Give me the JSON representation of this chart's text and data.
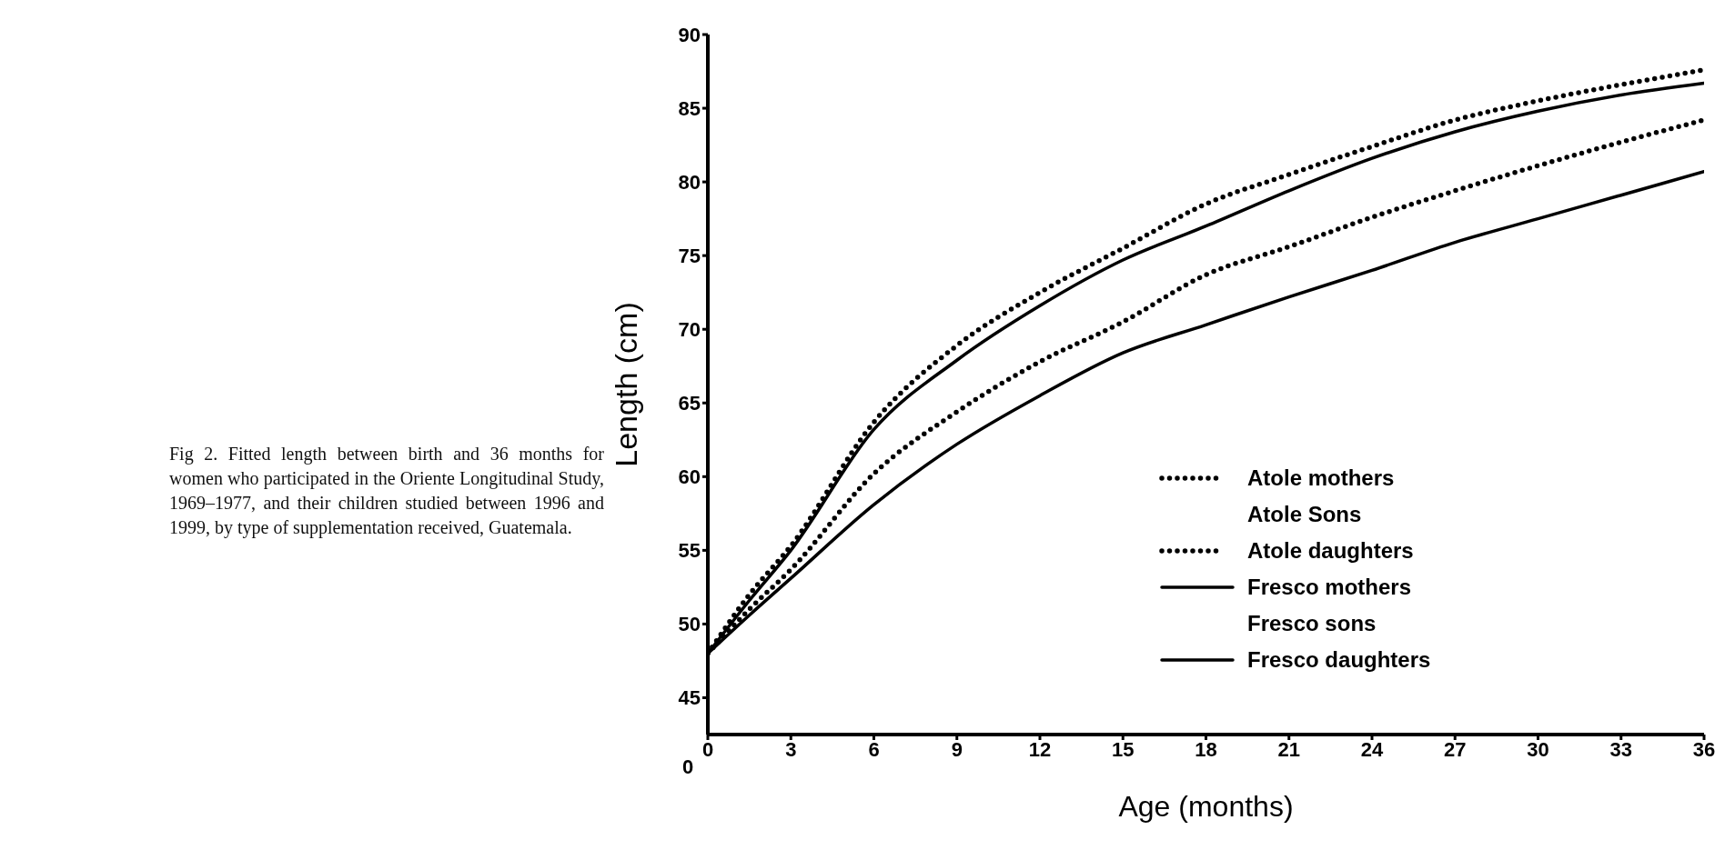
{
  "chart_data": {
    "type": "line",
    "title": "Fig 2. Fitted length between birth and 36 months for women who participated in the Oriente Longitudinal Study, 1969–1977, and their children studied between 1996 and 1999, by type of supplementation received, Guatemala.",
    "xlabel": "Age (months)",
    "ylabel": "Length (cm)",
    "x": [
      0,
      1.5,
      3,
      6,
      9,
      12,
      15,
      18,
      21,
      24,
      27,
      30,
      33,
      36
    ],
    "series": [
      {
        "name": "Atole mothers",
        "color": "#000000",
        "line_style": "dotted",
        "values": [
          48,
          52,
          55.3,
          63.7,
          68.9,
          72.5,
          75.5,
          78.5,
          80.5,
          82.4,
          84.2,
          85.5,
          86.6,
          87.6
        ]
      },
      {
        "name": "Atole Sons",
        "values": [
          null,
          null,
          null,
          null,
          null,
          null,
          null,
          null,
          null,
          null,
          null,
          null,
          null,
          null
        ]
      },
      {
        "name": "Atole daughters",
        "color": "#000000",
        "line_style": "dotted",
        "values": [
          48,
          51,
          53.7,
          60.2,
          64.4,
          67.8,
          70.5,
          73.7,
          75.6,
          77.6,
          79.4,
          81.1,
          82.7,
          84.2
        ]
      },
      {
        "name": "Fresco mothers",
        "color": "#000000",
        "line_style": "solid",
        "values": [
          48,
          51.6,
          55,
          63.2,
          67.9,
          71.6,
          74.7,
          77,
          79.4,
          81.6,
          83.4,
          84.8,
          85.9,
          86.7
        ]
      },
      {
        "name": "Fresco sons",
        "values": [
          null,
          null,
          null,
          null,
          null,
          null,
          null,
          null,
          null,
          null,
          null,
          null,
          null,
          null
        ]
      },
      {
        "name": "Fresco daughters",
        "color": "#000000",
        "line_style": "solid",
        "values": [
          48,
          50.6,
          53.1,
          58.1,
          62.2,
          65.5,
          68.4,
          70.3,
          72.2,
          74,
          75.9,
          77.5,
          79.1,
          80.7
        ]
      }
    ],
    "xlim": [
      0,
      36
    ],
    "xticks": [
      0,
      3,
      6,
      9,
      12,
      15,
      18,
      21,
      24,
      27,
      30,
      33,
      36
    ],
    "ylim": [
      42.5,
      90
    ],
    "yticks": [
      45,
      50,
      55,
      60,
      65,
      70,
      75,
      80,
      85,
      90
    ],
    "annotations": [
      "0"
    ],
    "grid": false,
    "legend": "right",
    "marker": "none"
  }
}
